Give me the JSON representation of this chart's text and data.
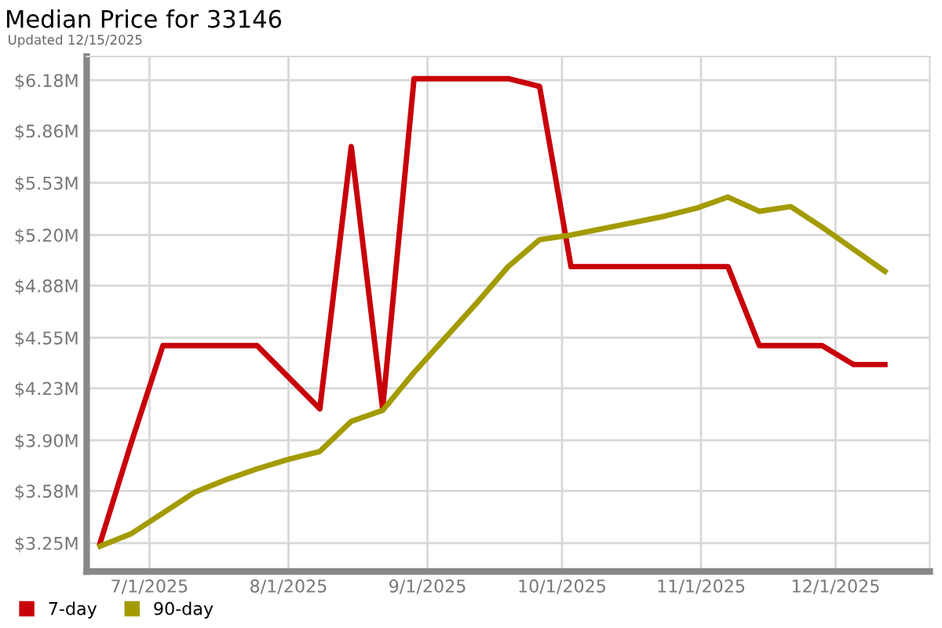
{
  "chart_data": {
    "type": "line",
    "title": "Median Price for 33146",
    "subtitle": "Updated 12/15/2025",
    "x": [
      "2025-06-20",
      "2025-06-27",
      "2025-07-04",
      "2025-07-11",
      "2025-07-18",
      "2025-07-25",
      "2025-08-01",
      "2025-08-08",
      "2025-08-15",
      "2025-08-22",
      "2025-08-29",
      "2025-09-05",
      "2025-09-12",
      "2025-09-19",
      "2025-09-26",
      "2025-10-03",
      "2025-10-10",
      "2025-10-17",
      "2025-10-24",
      "2025-10-31",
      "2025-11-07",
      "2025-11-14",
      "2025-11-21",
      "2025-11-28",
      "2025-12-05",
      "2025-12-12"
    ],
    "series": [
      {
        "name": "7-day",
        "color": "#c8000a",
        "values": [
          3.25,
          3.89,
          4.5,
          4.5,
          4.5,
          4.5,
          4.3,
          4.1,
          5.76,
          4.1,
          6.19,
          6.19,
          6.19,
          6.19,
          6.14,
          5.0,
          5.0,
          5.0,
          5.0,
          5.0,
          5.0,
          4.5,
          4.5,
          4.5,
          4.38,
          4.38
        ]
      },
      {
        "name": "90-day",
        "color": "#a39b00",
        "values": [
          3.23,
          3.31,
          3.44,
          3.57,
          3.65,
          3.72,
          3.78,
          3.83,
          4.02,
          4.09,
          4.33,
          4.55,
          4.77,
          5.0,
          5.17,
          5.2,
          5.24,
          5.28,
          5.32,
          5.37,
          5.44,
          5.35,
          5.38,
          5.25,
          5.11,
          4.97
        ]
      }
    ],
    "xlim": [
      "2025-06-17",
      "2025-12-22"
    ],
    "xticks": [
      {
        "value": "2025-07-01",
        "label": "7/1/2025"
      },
      {
        "value": "2025-08-01",
        "label": "8/1/2025"
      },
      {
        "value": "2025-09-01",
        "label": "9/1/2025"
      },
      {
        "value": "2025-10-01",
        "label": "10/1/2025"
      },
      {
        "value": "2025-11-01",
        "label": "11/1/2025"
      },
      {
        "value": "2025-12-01",
        "label": "12/1/2025"
      }
    ],
    "ylim": [
      3.07,
      6.33
    ],
    "yticks": [
      {
        "value": 3.25,
        "label": "$3.25M"
      },
      {
        "value": 3.58,
        "label": "$3.58M"
      },
      {
        "value": 3.9,
        "label": "$3.90M"
      },
      {
        "value": 4.23,
        "label": "$4.23M"
      },
      {
        "value": 4.55,
        "label": "$4.55M"
      },
      {
        "value": 4.88,
        "label": "$4.88M"
      },
      {
        "value": 5.2,
        "label": "$5.20M"
      },
      {
        "value": 5.53,
        "label": "$5.53M"
      },
      {
        "value": 5.86,
        "label": "$5.86M"
      },
      {
        "value": 6.18,
        "label": "$6.18M"
      }
    ],
    "grid": true,
    "legend": "bottom left",
    "marker": "none",
    "line_style": "solid"
  }
}
